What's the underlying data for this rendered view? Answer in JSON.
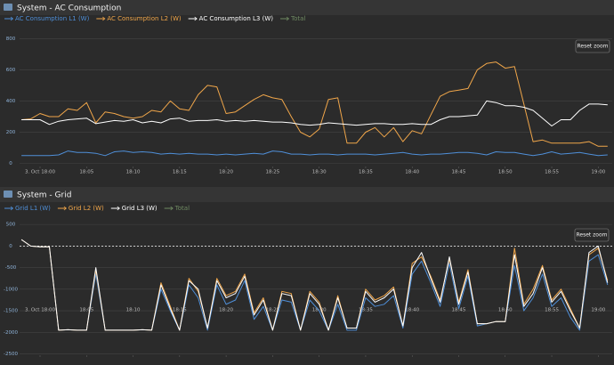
{
  "chart_data": [
    {
      "type": "line",
      "title": "System - AC Consumption",
      "reset_button": "Reset zoom",
      "x": [
        -2,
        -1,
        0,
        1,
        2,
        3,
        4,
        5,
        6,
        7,
        8,
        9,
        10,
        11,
        12,
        13,
        14,
        15,
        16,
        17,
        18,
        19,
        20,
        21,
        22,
        23,
        24,
        25,
        26,
        27,
        28,
        29,
        30,
        31,
        32,
        33,
        34,
        35,
        36,
        37,
        38,
        39,
        40,
        41,
        42,
        43,
        44,
        45,
        46,
        47,
        48,
        49,
        50,
        51,
        52,
        53,
        54,
        55,
        56,
        57,
        58,
        59,
        60,
        61
      ],
      "xlim": [
        -2.2,
        61.5
      ],
      "xticks": [
        {
          "value": 0,
          "label": "3. Oct 18:00"
        },
        {
          "value": 5,
          "label": "18:05"
        },
        {
          "value": 10,
          "label": "18:10"
        },
        {
          "value": 15,
          "label": "18:15"
        },
        {
          "value": 20,
          "label": "18:20"
        },
        {
          "value": 25,
          "label": "18:25"
        },
        {
          "value": 30,
          "label": "18:30"
        },
        {
          "value": 35,
          "label": "18:35"
        },
        {
          "value": 40,
          "label": "18:40"
        },
        {
          "value": 45,
          "label": "18:45"
        },
        {
          "value": 50,
          "label": "18:50"
        },
        {
          "value": 55,
          "label": "18:55"
        },
        {
          "value": 60,
          "label": "19:00"
        }
      ],
      "ylim": [
        -25,
        830
      ],
      "yticks": [
        0,
        200,
        400,
        600,
        800
      ],
      "grid": true,
      "series": [
        {
          "name": "AC Consumption L1 (W)",
          "color": "#4f8fd8",
          "values": [
            50,
            50,
            50,
            50,
            55,
            80,
            70,
            70,
            65,
            50,
            75,
            80,
            70,
            75,
            70,
            60,
            65,
            60,
            65,
            60,
            60,
            55,
            60,
            55,
            60,
            65,
            60,
            80,
            75,
            60,
            60,
            55,
            60,
            60,
            55,
            60,
            60,
            60,
            55,
            60,
            65,
            70,
            60,
            55,
            60,
            60,
            65,
            70,
            70,
            65,
            55,
            75,
            70,
            70,
            60,
            50,
            60,
            75,
            60,
            65,
            70,
            60,
            50,
            55
          ]
        },
        {
          "name": "AC Consumption L2 (W)",
          "color": "#f0a64a",
          "values": [
            280,
            285,
            320,
            300,
            300,
            350,
            340,
            390,
            260,
            330,
            320,
            300,
            290,
            300,
            340,
            330,
            400,
            350,
            340,
            440,
            500,
            490,
            320,
            330,
            370,
            410,
            440,
            420,
            410,
            300,
            200,
            170,
            220,
            410,
            420,
            130,
            130,
            200,
            230,
            170,
            230,
            140,
            210,
            190,
            310,
            430,
            460,
            470,
            480,
            600,
            640,
            650,
            610,
            620,
            380,
            140,
            150,
            130,
            130,
            130,
            130,
            140,
            110,
            110
          ]
        },
        {
          "name": "AC Consumption L3 (W)",
          "color": "#ffffff",
          "values": [
            280,
            280,
            280,
            250,
            270,
            280,
            285,
            290,
            255,
            265,
            275,
            270,
            280,
            260,
            270,
            260,
            285,
            290,
            270,
            275,
            275,
            280,
            270,
            275,
            270,
            275,
            270,
            265,
            265,
            260,
            250,
            245,
            250,
            260,
            255,
            250,
            245,
            250,
            255,
            255,
            250,
            250,
            255,
            250,
            250,
            280,
            300,
            300,
            305,
            310,
            400,
            390,
            370,
            370,
            360,
            340,
            290,
            240,
            280,
            280,
            340,
            380,
            380,
            375
          ]
        },
        {
          "name": "Total",
          "color": "#6f9a5e",
          "visible": false
        }
      ]
    },
    {
      "type": "line",
      "title": "System - Grid",
      "reset_button": "Reset zoom",
      "zero_line": true,
      "x": [
        -2,
        -1,
        0,
        1,
        2,
        3,
        4,
        5,
        6,
        7,
        8,
        9,
        10,
        11,
        12,
        13,
        14,
        15,
        16,
        17,
        18,
        19,
        20,
        21,
        22,
        23,
        24,
        25,
        26,
        27,
        28,
        29,
        30,
        31,
        32,
        33,
        34,
        35,
        36,
        37,
        38,
        39,
        40,
        41,
        42,
        43,
        44,
        45,
        46,
        47,
        48,
        49,
        50,
        51,
        52,
        53,
        54,
        55,
        56,
        57,
        58,
        59,
        60,
        61
      ],
      "xlim": [
        -2.2,
        61.5
      ],
      "xticks": [
        {
          "value": 0,
          "label": "3. Oct 18:00"
        },
        {
          "value": 5,
          "label": "18:05"
        },
        {
          "value": 10,
          "label": "18:10"
        },
        {
          "value": 15,
          "label": "18:15"
        },
        {
          "value": 20,
          "label": "18:20"
        },
        {
          "value": 25,
          "label": "18:25"
        },
        {
          "value": 30,
          "label": "18:30"
        },
        {
          "value": 35,
          "label": "18:35"
        },
        {
          "value": 40,
          "label": "18:40"
        },
        {
          "value": 45,
          "label": "18:45"
        },
        {
          "value": 50,
          "label": "18:50"
        },
        {
          "value": 55,
          "label": "18:55"
        },
        {
          "value": 60,
          "label": "19:00"
        }
      ],
      "ylim": [
        -2550,
        750
      ],
      "yticks": [
        500,
        0,
        -500,
        -1000,
        -1500,
        -2000,
        -2500
      ],
      "grid": true,
      "series": [
        {
          "name": "Grid L1 (W)",
          "color": "#4f8fd8",
          "values": [
            150,
            0,
            -20,
            -20,
            -1950,
            -1940,
            -1950,
            -1950,
            -650,
            -1950,
            -1950,
            -1950,
            -1950,
            -1940,
            -1950,
            -1000,
            -1500,
            -1950,
            -900,
            -1200,
            -1950,
            -900,
            -1350,
            -1250,
            -800,
            -1700,
            -1400,
            -1950,
            -1250,
            -1300,
            -1950,
            -1250,
            -1500,
            -1950,
            -1350,
            -1950,
            -1950,
            -1200,
            -1400,
            -1350,
            -1150,
            -1900,
            -650,
            -350,
            -850,
            -1400,
            -400,
            -1450,
            -700,
            -1850,
            -1800,
            -1750,
            -1750,
            -450,
            -1500,
            -1200,
            -650,
            -1400,
            -1200,
            -1650,
            -1950,
            -350,
            -200,
            -900
          ]
        },
        {
          "name": "Grid L2 (W)",
          "color": "#f0a64a",
          "values": [
            150,
            0,
            -20,
            -20,
            -1950,
            -1940,
            -1950,
            -1950,
            -550,
            -1950,
            -1950,
            -1950,
            -1950,
            -1940,
            -1950,
            -850,
            -1400,
            -1950,
            -750,
            -1050,
            -1900,
            -750,
            -1150,
            -1050,
            -650,
            -1550,
            -1200,
            -1950,
            -1050,
            -1100,
            -1950,
            -1050,
            -1300,
            -1950,
            -1150,
            -1900,
            -1900,
            -1000,
            -1250,
            -1150,
            -950,
            -1850,
            -400,
            -250,
            -700,
            -1250,
            -300,
            -1300,
            -550,
            -1800,
            -1800,
            -1750,
            -1750,
            -50,
            -1350,
            -1000,
            -450,
            -1250,
            -1000,
            -1450,
            -1900,
            -200,
            -50,
            -800
          ]
        },
        {
          "name": "Grid L3 (W)",
          "color": "#ffffff",
          "values": [
            150,
            0,
            -20,
            -20,
            -1950,
            -1940,
            -1950,
            -1950,
            -500,
            -1950,
            -1950,
            -1950,
            -1950,
            -1940,
            -1950,
            -900,
            -1450,
            -1950,
            -800,
            -1000,
            -1900,
            -800,
            -1200,
            -1100,
            -700,
            -1600,
            -1250,
            -1950,
            -1100,
            -1150,
            -1950,
            -1100,
            -1350,
            -1950,
            -1200,
            -1900,
            -1900,
            -1050,
            -1300,
            -1200,
            -1000,
            -1850,
            -500,
            -150,
            -750,
            -1300,
            -250,
            -1350,
            -600,
            -1800,
            -1800,
            -1750,
            -1750,
            -200,
            -1400,
            -1100,
            -500,
            -1300,
            -1050,
            -1500,
            -1900,
            -150,
            0,
            -850
          ]
        },
        {
          "name": "Total",
          "color": "#6f9a5e",
          "visible": false
        }
      ]
    }
  ]
}
